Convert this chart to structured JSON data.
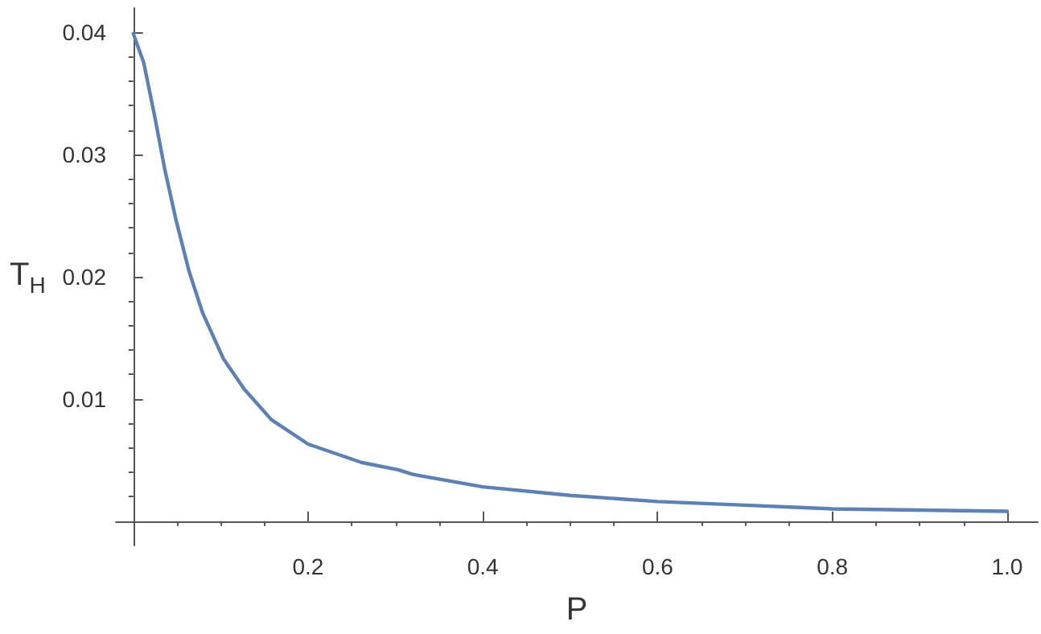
{
  "chart_data": {
    "type": "line",
    "xlabel": "P",
    "ylabel": "T$_{H}$",
    "series": [
      {
        "color": "#5e81b5",
        "x": [
          0,
          0.012,
          0.024,
          0.036,
          0.049,
          0.064,
          0.079,
          0.103,
          0.127,
          0.158,
          0.2,
          0.261,
          0.303,
          0.321,
          0.4,
          0.5,
          0.6,
          0.7,
          0.8,
          0.9,
          1.0
        ],
        "values": [
          0.0399,
          0.0375,
          0.0333,
          0.0288,
          0.0246,
          0.0204,
          0.0171,
          0.0133,
          0.0108,
          0.0083,
          0.0063,
          0.0048,
          0.0042,
          0.0038,
          0.0028,
          0.0021,
          0.0016,
          0.0013,
          0.001,
          0.0009,
          0.0008
        ]
      }
    ],
    "xlim": [
      -0.02,
      1.035
    ],
    "ylim": [
      -0.002,
      0.042
    ],
    "xticks": [
      {
        "value": 0.05,
        "label": null
      },
      {
        "value": 0.1,
        "label": null
      },
      {
        "value": 0.15,
        "label": null
      },
      0.2,
      {
        "value": 0.25,
        "label": null
      },
      {
        "value": 0.3,
        "label": null
      },
      {
        "value": 0.35,
        "label": null
      },
      0.4,
      {
        "value": 0.45,
        "label": null
      },
      {
        "value": 0.5,
        "label": null
      },
      {
        "value": 0.55,
        "label": null
      },
      0.6,
      {
        "value": 0.65,
        "label": null
      },
      {
        "value": 0.7,
        "label": null
      },
      {
        "value": 0.75,
        "label": null
      },
      0.8,
      {
        "value": 0.85,
        "label": null
      },
      {
        "value": 0.9,
        "label": null
      },
      {
        "value": 0.95,
        "label": null
      },
      {
        "value": 1.0,
        "label": "1.0"
      }
    ],
    "yticks": [
      {
        "value": 0.002,
        "label": null
      },
      {
        "value": 0.004,
        "label": null
      },
      {
        "value": 0.006,
        "label": null
      },
      {
        "value": 0.008,
        "label": null
      },
      0.01,
      {
        "value": 0.012,
        "label": null
      },
      {
        "value": 0.014,
        "label": null
      },
      {
        "value": 0.016,
        "label": null
      },
      {
        "value": 0.018,
        "label": null
      },
      0.02,
      {
        "value": 0.022,
        "label": null
      },
      {
        "value": 0.024,
        "label": null
      },
      {
        "value": 0.026,
        "label": null
      },
      {
        "value": 0.028,
        "label": null
      },
      0.03,
      {
        "value": 0.032,
        "label": null
      },
      {
        "value": 0.034,
        "label": null
      },
      {
        "value": 0.036,
        "label": null
      },
      {
        "value": 0.038,
        "label": null
      },
      0.04
    ],
    "grid": false,
    "marker": "none",
    "line_style": "solid"
  }
}
